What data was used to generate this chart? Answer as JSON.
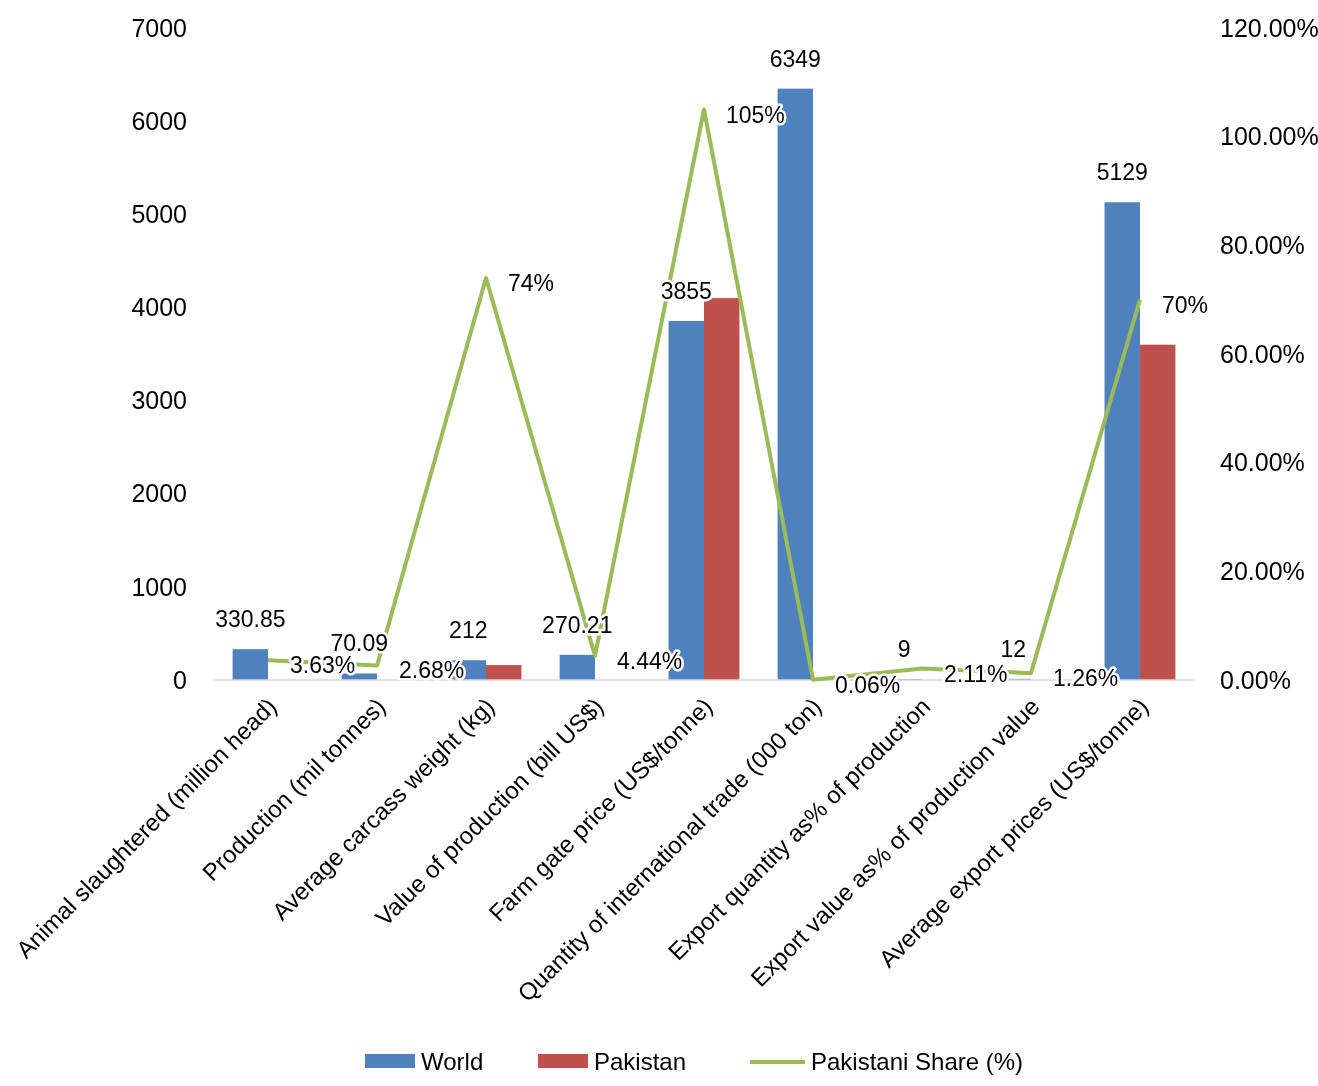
{
  "chart_data": {
    "type": "bar",
    "categories": [
      "Animal slaughtered (million head)",
      "Production (mil tonnes)",
      "Average carcass weight (kg)",
      "Value of production (bill US$)",
      "Farm gate price (US$/tonne)",
      "Quantity of international trade (000 ton)",
      "Export quantity as% of production",
      "Export value as% of production value",
      "Average export prices (US$/tonne)"
    ],
    "series": [
      {
        "name": "World",
        "color": "#4f81bd",
        "values": [
          330.85,
          70.09,
          212,
          270.21,
          3855,
          6349,
          9,
          12,
          5129
        ],
        "value_labels": [
          "330.85",
          "70.09",
          "212",
          "270.21",
          "3855",
          "6349",
          "9",
          "12",
          "5129"
        ]
      },
      {
        "name": "Pakistan",
        "color": "#c0504d",
        "values": [
          null,
          0,
          160,
          null,
          4100,
          0,
          0,
          0,
          3600
        ]
      },
      {
        "name": "Pakistani Share (%)",
        "type": "line",
        "axis": "y2",
        "color": "#9bbb59",
        "values": [
          3.63,
          2.68,
          74,
          4.44,
          105,
          0.06,
          2.11,
          1.26,
          70
        ],
        "value_labels": [
          "3.63%",
          "2.68%",
          "74%",
          "4.44%",
          "105%",
          "0.06%",
          "2.11%",
          "1.26%",
          "70%"
        ]
      }
    ],
    "ylim": [
      0,
      7000
    ],
    "yticks": [
      0,
      1000,
      2000,
      3000,
      4000,
      5000,
      6000,
      7000
    ],
    "y2lim": [
      0,
      120
    ],
    "y2ticks": [
      {
        "value": 0,
        "label": "0.00%"
      },
      {
        "value": 20,
        "label": "20.00%"
      },
      {
        "value": 40,
        "label": "40.00%"
      },
      {
        "value": 60,
        "label": "60.00%"
      },
      {
        "value": 80,
        "label": "80.00%"
      },
      {
        "value": 100,
        "label": "100.00%"
      },
      {
        "value": 120,
        "label": "120.00%"
      }
    ],
    "grid": false,
    "legend": "bottom",
    "marker": "none",
    "line_style": "solid"
  }
}
